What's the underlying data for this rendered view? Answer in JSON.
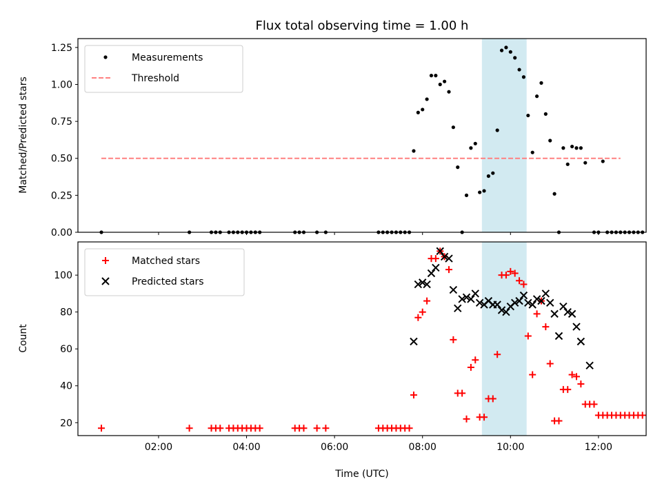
{
  "title": "Flux total observing time = 1.00 h",
  "chart_data": [
    {
      "type": "scatter",
      "ylabel": "Matched/Predicted stars",
      "xlabel": "",
      "xlim": [
        "00:10",
        "13:05"
      ],
      "ylim": [
        0,
        1.31
      ],
      "yticks": [
        "0.00",
        "0.25",
        "0.50",
        "0.75",
        "1.00",
        "1.25"
      ],
      "legend": "upper-left",
      "legend_entries": [
        "Measurements",
        "Threshold"
      ],
      "shaded_span": [
        "09:21",
        "10:22"
      ],
      "shade_color": "#add8e6",
      "threshold": {
        "value": 0.5,
        "x_range": [
          "00:42",
          "12:30"
        ],
        "color": "#ff8080"
      },
      "series": [
        {
          "name": "Measurements",
          "color": "#000000",
          "marker": "dot",
          "points": [
            [
              "00:42",
              0
            ],
            [
              "02:42",
              0
            ],
            [
              "03:12",
              0
            ],
            [
              "03:18",
              0
            ],
            [
              "03:24",
              0
            ],
            [
              "03:36",
              0
            ],
            [
              "03:42",
              0
            ],
            [
              "03:48",
              0
            ],
            [
              "03:54",
              0
            ],
            [
              "04:00",
              0
            ],
            [
              "04:06",
              0
            ],
            [
              "04:12",
              0
            ],
            [
              "04:18",
              0
            ],
            [
              "05:06",
              0
            ],
            [
              "05:12",
              0
            ],
            [
              "05:18",
              0
            ],
            [
              "05:36",
              0
            ],
            [
              "05:48",
              0
            ],
            [
              "07:00",
              0
            ],
            [
              "07:06",
              0
            ],
            [
              "07:12",
              0
            ],
            [
              "07:18",
              0
            ],
            [
              "07:24",
              0
            ],
            [
              "07:30",
              0
            ],
            [
              "07:36",
              0
            ],
            [
              "07:42",
              0
            ],
            [
              "07:48",
              0.55
            ],
            [
              "07:54",
              0.81
            ],
            [
              "08:00",
              0.83
            ],
            [
              "08:06",
              0.9
            ],
            [
              "08:12",
              1.06
            ],
            [
              "08:18",
              1.06
            ],
            [
              "08:24",
              1.0
            ],
            [
              "08:30",
              1.02
            ],
            [
              "08:36",
              0.95
            ],
            [
              "08:42",
              0.71
            ],
            [
              "08:48",
              0.44
            ],
            [
              "08:54",
              0.0
            ],
            [
              "09:00",
              0.25
            ],
            [
              "09:06",
              0.57
            ],
            [
              "09:12",
              0.6
            ],
            [
              "09:18",
              0.27
            ],
            [
              "09:24",
              0.28
            ],
            [
              "09:30",
              0.38
            ],
            [
              "09:36",
              0.4
            ],
            [
              "09:42",
              0.69
            ],
            [
              "09:48",
              1.23
            ],
            [
              "09:54",
              1.25
            ],
            [
              "10:00",
              1.22
            ],
            [
              "10:06",
              1.18
            ],
            [
              "10:12",
              1.1
            ],
            [
              "10:18",
              1.05
            ],
            [
              "10:24",
              0.79
            ],
            [
              "10:30",
              0.54
            ],
            [
              "10:36",
              0.92
            ],
            [
              "10:42",
              1.01
            ],
            [
              "10:48",
              0.8
            ],
            [
              "10:54",
              0.62
            ],
            [
              "11:00",
              0.26
            ],
            [
              "11:06",
              0.0
            ],
            [
              "11:12",
              0.57
            ],
            [
              "11:18",
              0.46
            ],
            [
              "11:24",
              0.58
            ],
            [
              "11:30",
              0.57
            ],
            [
              "11:36",
              0.57
            ],
            [
              "11:42",
              0.47
            ],
            [
              "11:54",
              0.0
            ],
            [
              "12:00",
              0.0
            ],
            [
              "12:06",
              0.48
            ],
            [
              "12:12",
              0.0
            ],
            [
              "12:18",
              0.0
            ],
            [
              "12:24",
              0.0
            ],
            [
              "12:30",
              0.0
            ],
            [
              "12:36",
              0.0
            ],
            [
              "12:42",
              0.0
            ],
            [
              "12:48",
              0.0
            ],
            [
              "12:54",
              0.0
            ],
            [
              "13:00",
              0.0
            ]
          ]
        }
      ]
    },
    {
      "type": "scatter",
      "ylabel": "Count",
      "xlabel": "Time (UTC)",
      "xlim": [
        "00:10",
        "13:05"
      ],
      "ylim": [
        13,
        118
      ],
      "yticks": [
        "20",
        "40",
        "60",
        "80",
        "100"
      ],
      "xticks": [
        "02:00",
        "04:00",
        "06:00",
        "08:00",
        "10:00",
        "12:00"
      ],
      "legend": "upper-left",
      "shaded_span": [
        "09:21",
        "10:22"
      ],
      "shade_color": "#add8e6",
      "series": [
        {
          "name": "Matched stars",
          "color": "#ff0000",
          "marker": "plus",
          "points": [
            [
              "00:42",
              17
            ],
            [
              "02:42",
              17
            ],
            [
              "03:12",
              17
            ],
            [
              "03:18",
              17
            ],
            [
              "03:24",
              17
            ],
            [
              "03:36",
              17
            ],
            [
              "03:42",
              17
            ],
            [
              "03:48",
              17
            ],
            [
              "03:54",
              17
            ],
            [
              "04:00",
              17
            ],
            [
              "04:06",
              17
            ],
            [
              "04:12",
              17
            ],
            [
              "04:18",
              17
            ],
            [
              "05:06",
              17
            ],
            [
              "05:12",
              17
            ],
            [
              "05:18",
              17
            ],
            [
              "05:36",
              17
            ],
            [
              "05:48",
              17
            ],
            [
              "07:00",
              17
            ],
            [
              "07:06",
              17
            ],
            [
              "07:12",
              17
            ],
            [
              "07:18",
              17
            ],
            [
              "07:24",
              17
            ],
            [
              "07:30",
              17
            ],
            [
              "07:36",
              17
            ],
            [
              "07:42",
              17
            ],
            [
              "07:48",
              35
            ],
            [
              "07:54",
              77
            ],
            [
              "08:00",
              80
            ],
            [
              "08:06",
              86
            ],
            [
              "08:12",
              109
            ],
            [
              "08:18",
              109
            ],
            [
              "08:24",
              113
            ],
            [
              "08:30",
              110
            ],
            [
              "08:36",
              103
            ],
            [
              "08:42",
              65
            ],
            [
              "08:48",
              36
            ],
            [
              "08:54",
              36
            ],
            [
              "09:00",
              22
            ],
            [
              "09:06",
              50
            ],
            [
              "09:12",
              54
            ],
            [
              "09:18",
              23
            ],
            [
              "09:24",
              23
            ],
            [
              "09:30",
              33
            ],
            [
              "09:36",
              33
            ],
            [
              "09:42",
              57
            ],
            [
              "09:48",
              100
            ],
            [
              "09:54",
              100
            ],
            [
              "10:00",
              102
            ],
            [
              "10:06",
              101
            ],
            [
              "10:12",
              97
            ],
            [
              "10:18",
              95
            ],
            [
              "10:24",
              67
            ],
            [
              "10:30",
              46
            ],
            [
              "10:36",
              79
            ],
            [
              "10:42",
              86
            ],
            [
              "10:48",
              72
            ],
            [
              "10:54",
              52
            ],
            [
              "11:00",
              21
            ],
            [
              "11:06",
              21
            ],
            [
              "11:12",
              38
            ],
            [
              "11:18",
              38
            ],
            [
              "11:24",
              46
            ],
            [
              "11:30",
              45
            ],
            [
              "11:36",
              41
            ],
            [
              "11:42",
              30
            ],
            [
              "11:48",
              30
            ],
            [
              "11:54",
              30
            ],
            [
              "12:00",
              24
            ],
            [
              "12:06",
              24
            ],
            [
              "12:12",
              24
            ],
            [
              "12:18",
              24
            ],
            [
              "12:24",
              24
            ],
            [
              "12:30",
              24
            ],
            [
              "12:36",
              24
            ],
            [
              "12:42",
              24
            ],
            [
              "12:48",
              24
            ],
            [
              "12:54",
              24
            ],
            [
              "13:00",
              24
            ]
          ]
        },
        {
          "name": "Predicted stars",
          "color": "#000000",
          "marker": "x",
          "points": [
            [
              "07:48",
              64
            ],
            [
              "07:54",
              95
            ],
            [
              "08:00",
              96
            ],
            [
              "08:06",
              95
            ],
            [
              "08:12",
              101
            ],
            [
              "08:18",
              104
            ],
            [
              "08:24",
              113
            ],
            [
              "08:30",
              110
            ],
            [
              "08:36",
              109
            ],
            [
              "08:42",
              92
            ],
            [
              "08:48",
              82
            ],
            [
              "08:54",
              87
            ],
            [
              "09:00",
              88
            ],
            [
              "09:06",
              87
            ],
            [
              "09:12",
              90
            ],
            [
              "09:18",
              85
            ],
            [
              "09:24",
              84
            ],
            [
              "09:30",
              86
            ],
            [
              "09:36",
              84
            ],
            [
              "09:42",
              84
            ],
            [
              "09:48",
              81
            ],
            [
              "09:54",
              80
            ],
            [
              "10:00",
              83
            ],
            [
              "10:06",
              85
            ],
            [
              "10:12",
              86
            ],
            [
              "10:18",
              89
            ],
            [
              "10:24",
              85
            ],
            [
              "10:30",
              84
            ],
            [
              "10:36",
              87
            ],
            [
              "10:42",
              86
            ],
            [
              "10:48",
              90
            ],
            [
              "10:54",
              85
            ],
            [
              "11:00",
              79
            ],
            [
              "11:06",
              67
            ],
            [
              "11:12",
              83
            ],
            [
              "11:18",
              80
            ],
            [
              "11:24",
              79
            ],
            [
              "11:30",
              72
            ],
            [
              "11:36",
              64
            ],
            [
              "11:48",
              51
            ]
          ]
        }
      ]
    }
  ]
}
